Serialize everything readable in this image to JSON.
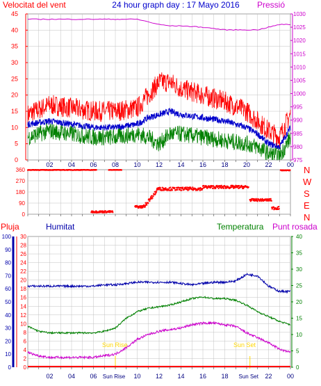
{
  "colors": {
    "wind_avg": "#0000cc",
    "gust": "#ff0000",
    "lull": "#008000",
    "pressure": "#cc00cc",
    "direction": "#ff0000",
    "rain": "#ff0000",
    "humidity": "#0000aa",
    "temperature": "#008000",
    "dewpoint": "#cc00cc",
    "sun": "#ffd700",
    "grid": "#c0c0c0"
  },
  "chart_data": [
    {
      "type": "line",
      "title": "24 hour graph day : 17 Mayo 2016",
      "left_label": "Velocitat del vent",
      "right_label": "Pressió",
      "ylim": [
        0,
        45
      ],
      "y2lim": [
        975,
        1030
      ],
      "xticks": [
        "02",
        "04",
        "06",
        "08",
        "10",
        "12",
        "14",
        "16",
        "18",
        "20",
        "22",
        "00"
      ],
      "yticks": [
        "0",
        "5",
        "10",
        "15",
        "20",
        "25",
        "30",
        "35",
        "40",
        "45"
      ],
      "y2ticks": [
        "975",
        "980",
        "985",
        "990",
        "995",
        "1000",
        "1005",
        "1010",
        "1015",
        "1020",
        "1025",
        "1030"
      ],
      "x_hours": [
        0,
        2,
        4,
        6,
        8,
        10,
        11,
        12,
        13,
        14,
        16,
        18,
        20,
        21,
        22,
        23,
        24
      ],
      "series": [
        {
          "key": "gust",
          "values": [
            14,
            17,
            16,
            15,
            15,
            16,
            20,
            24,
            24,
            22,
            20,
            18,
            15,
            12,
            9,
            7,
            14
          ]
        },
        {
          "key": "wind_avg",
          "values": [
            11,
            12,
            11,
            10,
            10,
            11,
            13,
            14,
            15,
            14,
            13,
            12,
            10,
            8,
            5,
            4,
            10
          ]
        },
        {
          "key": "lull",
          "values": [
            7,
            9,
            8,
            7,
            7,
            8,
            7,
            5,
            8,
            8,
            7,
            6,
            5,
            4,
            2,
            1,
            7
          ]
        },
        {
          "key": "pressure",
          "values": [
            1028,
            1028,
            1028,
            1028,
            1028,
            1028,
            1027,
            1026,
            1025.5,
            1025.5,
            1025,
            1024,
            1024,
            1024,
            1025,
            1026,
            1026
          ]
        }
      ]
    },
    {
      "type": "scatter",
      "right_labels": [
        "N",
        "W",
        "S",
        "E",
        "N"
      ],
      "yticks": [
        "360",
        "270",
        "180",
        "90",
        "0"
      ],
      "ylim": [
        0,
        360
      ],
      "xticks": [
        "02",
        "04",
        "06",
        "08",
        "10",
        "12",
        "14",
        "16",
        "18",
        "20",
        "22",
        "00"
      ],
      "segments": [
        {
          "from": 0,
          "to": 6.3,
          "level": 358,
          "spread": 4
        },
        {
          "from": 7.4,
          "to": 8.6,
          "level": 358,
          "spread": 3
        },
        {
          "from": 5.8,
          "to": 7.8,
          "level": 20,
          "spread": 15
        },
        {
          "from": 9.8,
          "to": 10.6,
          "level": 60,
          "spread": 20
        },
        {
          "from": 10.6,
          "to": 11.8,
          "level": 140,
          "spread": 40
        },
        {
          "from": 11.8,
          "to": 16,
          "level": 205,
          "spread": 25
        },
        {
          "from": 16,
          "to": 20.2,
          "level": 220,
          "spread": 25
        },
        {
          "from": 20.3,
          "to": 22.3,
          "level": 115,
          "spread": 20
        },
        {
          "from": 22.3,
          "to": 23,
          "level": 50,
          "spread": 25
        },
        {
          "from": 23.1,
          "to": 24,
          "level": 355,
          "spread": 5
        }
      ]
    },
    {
      "type": "line",
      "legend": [
        "Pluja",
        "Humitat",
        "Temperatura",
        "Punt rosada"
      ],
      "y_rain_ticks": [
        "0",
        "2",
        "4",
        "6",
        "8",
        "10",
        "12",
        "14",
        "16",
        "18",
        "20",
        "22",
        "24",
        "26",
        "28",
        "30"
      ],
      "y_hum_ticks": [
        "0",
        "10",
        "20",
        "30",
        "40",
        "50",
        "60",
        "70",
        "80",
        "90",
        "100"
      ],
      "y_temp_ticks": [
        "0",
        "5",
        "10",
        "15",
        "20",
        "25",
        "30",
        "35",
        "40"
      ],
      "y_hum_lim": [
        0,
        100
      ],
      "y_temp_lim": [
        0,
        40
      ],
      "xticks": [
        "02",
        "04",
        "06",
        "08",
        "10",
        "12",
        "14",
        "16",
        "18",
        "20",
        "22",
        "00"
      ],
      "sun_rise_label": "Sun Rise",
      "sun_set_label": "Sun Set",
      "sunrise_tick": "Sun Rise",
      "sunset_tick": "Sun Set",
      "sunrise_hour": 8.0,
      "sunset_hour": 20.3,
      "x_hours": [
        0,
        1,
        2,
        3,
        4,
        5,
        6,
        7,
        8,
        9,
        10,
        11,
        12,
        13,
        14,
        15,
        16,
        17,
        18,
        19,
        20,
        21,
        22,
        23,
        24
      ],
      "series": [
        {
          "key": "humidity",
          "values": [
            62,
            62,
            62,
            62,
            62,
            62,
            62,
            63,
            63,
            64,
            65,
            65,
            65,
            65,
            64,
            63,
            64,
            65,
            65,
            66,
            71,
            70,
            62,
            58,
            58
          ]
        },
        {
          "key": "temperature",
          "values": [
            12.5,
            11,
            10.5,
            10.5,
            10.5,
            10.5,
            10.5,
            11,
            12,
            15,
            17,
            18,
            18.5,
            19,
            20,
            21,
            21.5,
            21,
            21,
            20.5,
            19,
            17,
            15.5,
            14,
            13
          ]
        },
        {
          "key": "dewpoint",
          "values": [
            4.5,
            3.5,
            3,
            3,
            3,
            3,
            3,
            3.5,
            4,
            6,
            8.5,
            10,
            11,
            11.5,
            12,
            13,
            13.5,
            13.5,
            13,
            12.5,
            10.5,
            9,
            7.5,
            5.5,
            4.5
          ]
        },
        {
          "key": "rain",
          "values": [
            0,
            0,
            0,
            0,
            0,
            0,
            0,
            0,
            0,
            0,
            0,
            0,
            0,
            0,
            0,
            0,
            0,
            0,
            0,
            0,
            0,
            0,
            0,
            0,
            0
          ]
        }
      ]
    }
  ]
}
